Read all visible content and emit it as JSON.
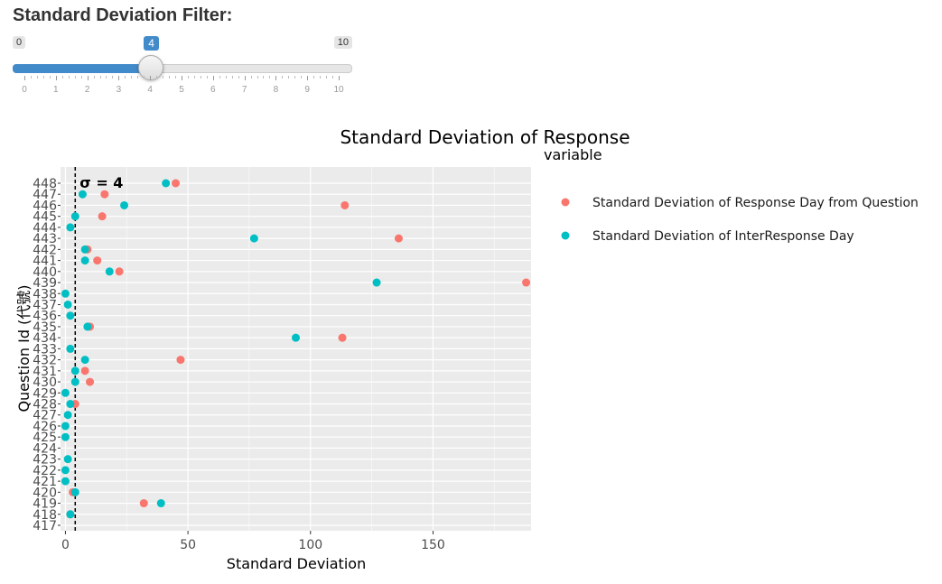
{
  "filter": {
    "title": "Standard Deviation Filter:",
    "min_label": "0",
    "max_label": "10",
    "value_label": "4",
    "value": 4,
    "min": 0,
    "max": 10,
    "tick_labels": [
      "0",
      "1",
      "2",
      "3",
      "4",
      "5",
      "6",
      "7",
      "8",
      "9",
      "10"
    ],
    "fill_color": "#428bca"
  },
  "chart_data": {
    "type": "scatter",
    "title": "Standard Deviation of Response",
    "xlabel": "Standard Deviation",
    "ylabel": "Question Id (代號)",
    "xlim": [
      -2,
      190
    ],
    "x_ticks": [
      0,
      50,
      100,
      150
    ],
    "categories": [
      "417",
      "418",
      "419",
      "420",
      "421",
      "422",
      "423",
      "424",
      "425",
      "426",
      "427",
      "428",
      "429",
      "430",
      "431",
      "432",
      "433",
      "434",
      "435",
      "436",
      "437",
      "438",
      "439",
      "440",
      "441",
      "442",
      "443",
      "444",
      "445",
      "446",
      "447",
      "448"
    ],
    "grid": true,
    "legend_title": "variable",
    "legend_position": "right",
    "threshold": {
      "value": 4,
      "label": "σ =  4"
    },
    "series": [
      {
        "name": "Standard Deviation of Response Day from Question",
        "color": "#F8766D",
        "points": [
          {
            "id": "418",
            "x": 2
          },
          {
            "id": "419",
            "x": 32
          },
          {
            "id": "420",
            "x": 3
          },
          {
            "id": "428",
            "x": 4
          },
          {
            "id": "430",
            "x": 10
          },
          {
            "id": "431",
            "x": 8
          },
          {
            "id": "432",
            "x": 47
          },
          {
            "id": "434",
            "x": 113
          },
          {
            "id": "435",
            "x": 10
          },
          {
            "id": "439",
            "x": 188
          },
          {
            "id": "440",
            "x": 22
          },
          {
            "id": "441",
            "x": 13
          },
          {
            "id": "442",
            "x": 9
          },
          {
            "id": "443",
            "x": 136
          },
          {
            "id": "445",
            "x": 15
          },
          {
            "id": "446",
            "x": 114
          },
          {
            "id": "447",
            "x": 16
          },
          {
            "id": "448",
            "x": 45
          }
        ]
      },
      {
        "name": "Standard Deviation of InterResponse Day",
        "color": "#00BFC4",
        "points": [
          {
            "id": "418",
            "x": 2
          },
          {
            "id": "419",
            "x": 39
          },
          {
            "id": "420",
            "x": 4
          },
          {
            "id": "421",
            "x": 0
          },
          {
            "id": "422",
            "x": 0
          },
          {
            "id": "423",
            "x": 1
          },
          {
            "id": "425",
            "x": 0
          },
          {
            "id": "426",
            "x": 0
          },
          {
            "id": "427",
            "x": 1
          },
          {
            "id": "428",
            "x": 2
          },
          {
            "id": "429",
            "x": 0
          },
          {
            "id": "430",
            "x": 4
          },
          {
            "id": "431",
            "x": 4
          },
          {
            "id": "432",
            "x": 8
          },
          {
            "id": "433",
            "x": 2
          },
          {
            "id": "434",
            "x": 94
          },
          {
            "id": "435",
            "x": 9
          },
          {
            "id": "436",
            "x": 2
          },
          {
            "id": "437",
            "x": 1
          },
          {
            "id": "438",
            "x": 0
          },
          {
            "id": "439",
            "x": 127
          },
          {
            "id": "440",
            "x": 18
          },
          {
            "id": "441",
            "x": 8
          },
          {
            "id": "442",
            "x": 8
          },
          {
            "id": "443",
            "x": 77
          },
          {
            "id": "444",
            "x": 2
          },
          {
            "id": "445",
            "x": 4
          },
          {
            "id": "446",
            "x": 24
          },
          {
            "id": "447",
            "x": 7
          },
          {
            "id": "448",
            "x": 41
          }
        ]
      }
    ]
  }
}
